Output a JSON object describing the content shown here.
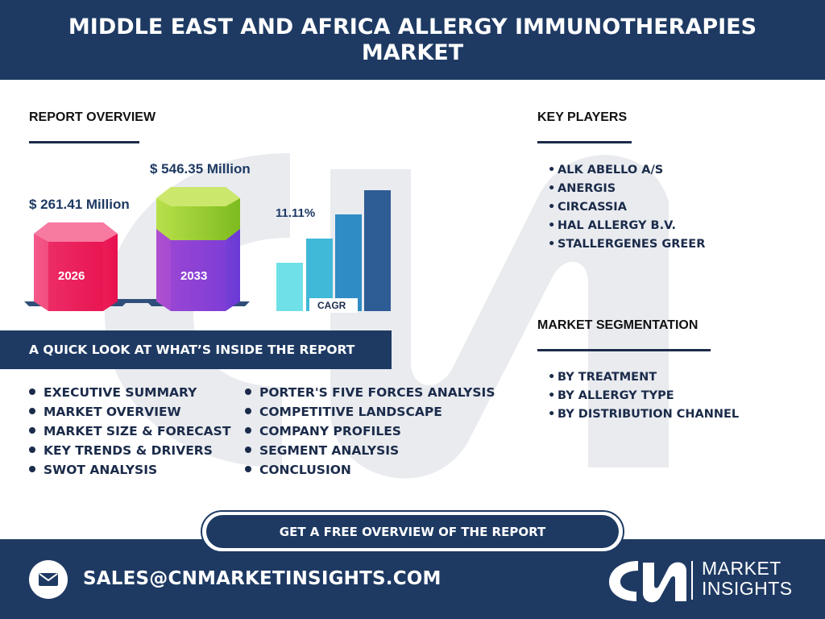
{
  "header": {
    "title": "MIDDLE EAST AND AFRICA ALLERGY IMMUNOTHERAPIES MARKET"
  },
  "report_overview": {
    "title": "REPORT OVERVIEW",
    "value_2026": "$ 261.41 Million",
    "value_2033": "$ 546.35 Million",
    "year_2026": "2026",
    "year_2033": "2033",
    "cagr_value": "11.11%",
    "cagr_label": "CAGR"
  },
  "key_players": {
    "title": "KEY PLAYERS",
    "items": [
      "ALK ABELLO A/S",
      "ANERGIS",
      "CIRCASSIA",
      "HAL ALLERGY B.V.",
      "STALLERGENES GREER"
    ]
  },
  "market_segmentation": {
    "title": "MARKET SEGMENTATION",
    "items": [
      "BY TREATMENT",
      "BY ALLERGY TYPE",
      "BY DISTRIBUTION CHANNEL"
    ]
  },
  "quick_look": {
    "title": "A QUICK LOOK AT WHAT’S INSIDE THE REPORT",
    "col1": [
      "EXECUTIVE SUMMARY",
      "MARKET OVERVIEW",
      "MARKET SIZE & FORECAST",
      "KEY TRENDS & DRIVERS",
      "SWOT ANALYSIS"
    ],
    "col2": [
      "PORTER'S FIVE FORCES ANALYSIS",
      "COMPETITIVE LANDSCAPE",
      "COMPANY PROFILES",
      "SEGMENT ANALYSIS",
      "CONCLUSION"
    ]
  },
  "cta": {
    "label": "GET A FREE OVERVIEW OF THE REPORT"
  },
  "footer": {
    "email": "SALES@CNMARKETINSIGHTS.COM",
    "logo_mark": "CN",
    "logo_line1": "MARKET",
    "logo_line2": "INSIGHTS",
    "mail_icon": "envelope-icon"
  },
  "colors": {
    "navy": "#1e3a63",
    "pink": "#f0185a",
    "green": "#9acd32",
    "purple": "#8a3fd6",
    "bar_light": "#6fe0e8",
    "bar_dark": "#2e5c95"
  }
}
